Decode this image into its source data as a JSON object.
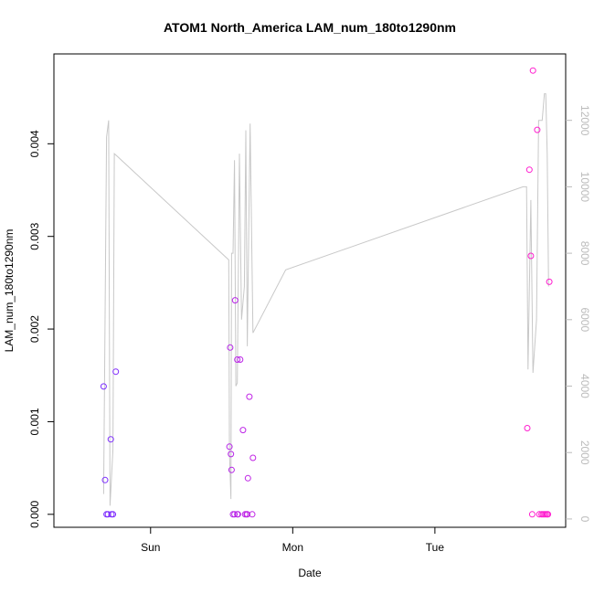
{
  "chart_data": {
    "type": "scatter",
    "title": "ATOM1 North_America LAM_num_180to1290nm",
    "xlabel": "Date",
    "ylabel": "LAM_num_180to1290nm",
    "x_unit": "days",
    "xlim": [
      -0.68,
      2.92
    ],
    "ylim": [
      -0.00014,
      0.00497
    ],
    "y2lim": [
      -250,
      14000
    ],
    "grid": false,
    "legend": "none",
    "x_ticks": [
      {
        "value": 0,
        "label": "Sun"
      },
      {
        "value": 1,
        "label": "Mon"
      },
      {
        "value": 2,
        "label": "Tue"
      }
    ],
    "y_ticks": [
      {
        "value": 0.0,
        "label": "0.000"
      },
      {
        "value": 0.001,
        "label": "0.001"
      },
      {
        "value": 0.002,
        "label": "0.002"
      },
      {
        "value": 0.003,
        "label": "0.003"
      },
      {
        "value": 0.004,
        "label": "0.004"
      }
    ],
    "y2_ticks": [
      {
        "value": 0,
        "label": "0"
      },
      {
        "value": 2000,
        "label": "2000"
      },
      {
        "value": 4000,
        "label": "4000"
      },
      {
        "value": 6000,
        "label": "6000"
      },
      {
        "value": 8000,
        "label": "8000"
      },
      {
        "value": 10000,
        "label": "10000"
      },
      {
        "value": 12000,
        "label": "12000"
      }
    ],
    "colors": {
      "points_start": "#7b2cff",
      "points_end": "#ff1ecf",
      "line": "#c8c8c8",
      "axis": "#000000",
      "right_axis": "#bbbbbb"
    },
    "series": [
      {
        "type": "scatter",
        "axis": "left",
        "points": [
          {
            "x": -0.33,
            "y": 0.00138
          },
          {
            "x": -0.32,
            "y": 0.00037
          },
          {
            "x": -0.31,
            "y": 0.0
          },
          {
            "x": -0.3,
            "y": 0.0
          },
          {
            "x": -0.28,
            "y": 0.00081
          },
          {
            "x": -0.275,
            "y": 0.0
          },
          {
            "x": -0.265,
            "y": 0.0
          },
          {
            "x": -0.245,
            "y": 0.00154
          },
          {
            "x": 0.555,
            "y": 0.00073
          },
          {
            "x": 0.56,
            "y": 0.0018
          },
          {
            "x": 0.565,
            "y": 0.00065
          },
          {
            "x": 0.57,
            "y": 0.00048
          },
          {
            "x": 0.58,
            "y": 0.0
          },
          {
            "x": 0.59,
            "y": 0.0
          },
          {
            "x": 0.595,
            "y": 0.00231
          },
          {
            "x": 0.61,
            "y": 0.0
          },
          {
            "x": 0.615,
            "y": 0.0
          },
          {
            "x": 0.61,
            "y": 0.00167
          },
          {
            "x": 0.63,
            "y": 0.00167
          },
          {
            "x": 0.65,
            "y": 0.00091
          },
          {
            "x": 0.665,
            "y": 0.0
          },
          {
            "x": 0.675,
            "y": 0.0
          },
          {
            "x": 0.68,
            "y": 0.0
          },
          {
            "x": 0.685,
            "y": 0.00039
          },
          {
            "x": 0.695,
            "y": 0.00127
          },
          {
            "x": 0.715,
            "y": 0.0
          },
          {
            "x": 0.72,
            "y": 0.00061
          },
          {
            "x": 2.65,
            "y": 0.00093
          },
          {
            "x": 2.665,
            "y": 0.00372
          },
          {
            "x": 2.675,
            "y": 0.00279
          },
          {
            "x": 2.685,
            "y": 0.0
          },
          {
            "x": 2.69,
            "y": 0.00479
          },
          {
            "x": 2.72,
            "y": 0.00415
          },
          {
            "x": 2.735,
            "y": 0.0
          },
          {
            "x": 2.75,
            "y": 0.0
          },
          {
            "x": 2.76,
            "y": 0.0
          },
          {
            "x": 2.77,
            "y": 0.0
          },
          {
            "x": 2.78,
            "y": 0.0
          },
          {
            "x": 2.79,
            "y": 0.0
          },
          {
            "x": 2.795,
            "y": 0.0
          },
          {
            "x": 2.805,
            "y": 0.00251
          }
        ]
      },
      {
        "type": "line",
        "axis": "right",
        "points": [
          {
            "x": -0.33,
            "y": 750
          },
          {
            "x": -0.31,
            "y": 11500
          },
          {
            "x": -0.295,
            "y": 12000
          },
          {
            "x": -0.285,
            "y": 400
          },
          {
            "x": -0.265,
            "y": 2100
          },
          {
            "x": -0.255,
            "y": 11000
          },
          {
            "x": 0.55,
            "y": 7800
          },
          {
            "x": 0.555,
            "y": 2000
          },
          {
            "x": 0.565,
            "y": 600
          },
          {
            "x": 0.57,
            "y": 8000
          },
          {
            "x": 0.58,
            "y": 8000
          },
          {
            "x": 0.59,
            "y": 10800
          },
          {
            "x": 0.6,
            "y": 4000
          },
          {
            "x": 0.61,
            "y": 4100
          },
          {
            "x": 0.625,
            "y": 11000
          },
          {
            "x": 0.64,
            "y": 6000
          },
          {
            "x": 0.66,
            "y": 7000
          },
          {
            "x": 0.67,
            "y": 11700
          },
          {
            "x": 0.68,
            "y": 5200
          },
          {
            "x": 0.7,
            "y": 11900
          },
          {
            "x": 0.72,
            "y": 5600
          },
          {
            "x": 0.95,
            "y": 7500
          },
          {
            "x": 2.62,
            "y": 10000
          },
          {
            "x": 2.645,
            "y": 10000
          },
          {
            "x": 2.655,
            "y": 4500
          },
          {
            "x": 2.675,
            "y": 9600
          },
          {
            "x": 2.69,
            "y": 4400
          },
          {
            "x": 2.715,
            "y": 6000
          },
          {
            "x": 2.73,
            "y": 12000
          },
          {
            "x": 2.755,
            "y": 12000
          },
          {
            "x": 2.77,
            "y": 12800
          },
          {
            "x": 2.78,
            "y": 12800
          },
          {
            "x": 2.79,
            "y": 11000
          },
          {
            "x": 2.8,
            "y": 7000
          }
        ]
      }
    ]
  }
}
